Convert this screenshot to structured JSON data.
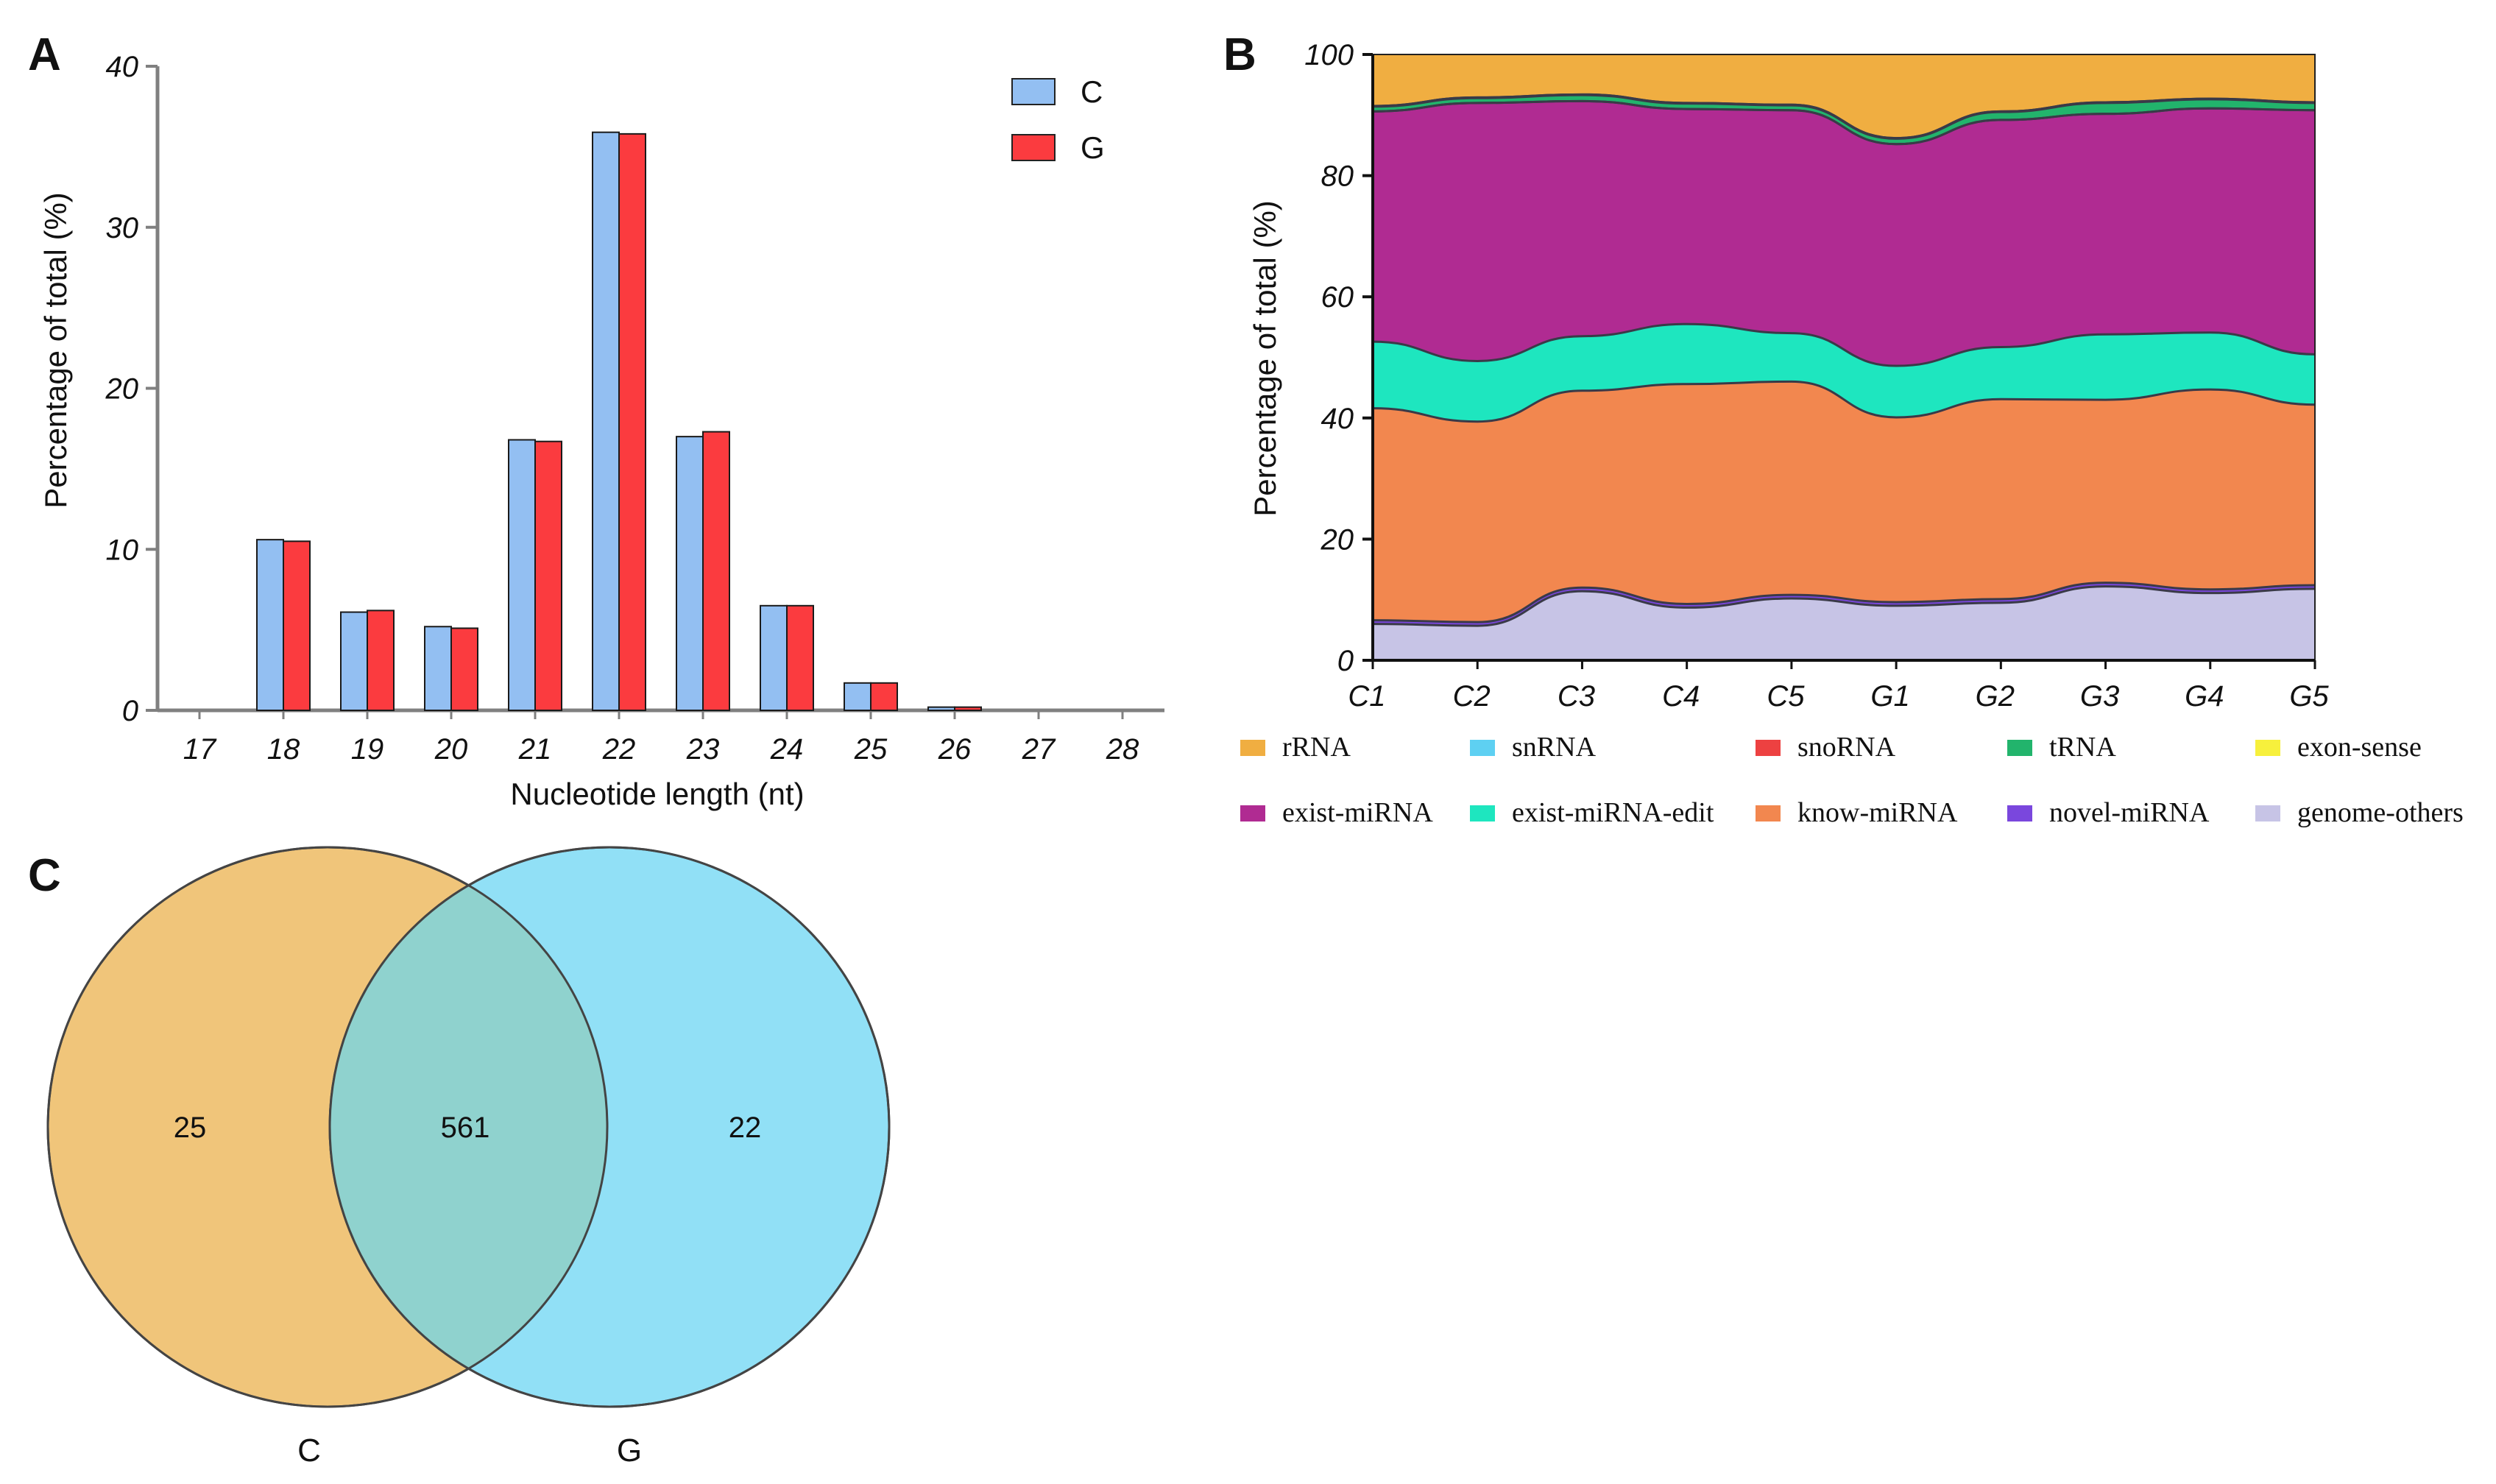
{
  "panel_labels": {
    "a": "A",
    "b": "B",
    "c": "C"
  },
  "colors": {
    "C": "#93bff2",
    "G": "#fb3b3f",
    "axis": "#808080",
    "rRNA": "#f0ae41",
    "snRNA": "#5ed0f2",
    "snoRNA": "#ed4141",
    "tRNA": "#22b46c",
    "exon_sense": "#f7f03c",
    "exist_miRNA": "#b02b92",
    "exist_miRNA_edit": "#1ee6bf",
    "know_miRNA": "#f2874f",
    "novel_miRNA": "#7a47dd",
    "genome_others": "#c7c4e6",
    "venn_C": "#f0c57a",
    "venn_G": "#91e0f6",
    "venn_overlap": "#8fd2ce"
  },
  "chart_data": [
    {
      "type": "bar",
      "panel": "A",
      "categories": [
        "17",
        "18",
        "19",
        "20",
        "21",
        "22",
        "23",
        "24",
        "25",
        "26",
        "27",
        "28"
      ],
      "series": [
        {
          "name": "C",
          "values": [
            0,
            10.6,
            6.1,
            5.2,
            16.8,
            35.9,
            17.0,
            6.5,
            1.7,
            0.2,
            0,
            0
          ]
        },
        {
          "name": "G",
          "values": [
            0,
            10.5,
            6.2,
            5.1,
            16.7,
            35.8,
            17.3,
            6.5,
            1.7,
            0.2,
            0,
            0
          ]
        }
      ],
      "xlabel": "Nucleotide length (nt)",
      "ylabel": "Percentage of total (%)",
      "ylim": [
        0,
        40
      ],
      "yticks": [
        "0",
        "10",
        "20",
        "30",
        "40"
      ],
      "legend": [
        "C",
        "G"
      ],
      "legend_position": "top-right"
    },
    {
      "type": "area",
      "stacked": true,
      "panel": "B",
      "categories": [
        "C1",
        "C2",
        "C3",
        "C4",
        "C5",
        "G1",
        "G2",
        "G3",
        "G4",
        "G5"
      ],
      "series": [
        {
          "name": "genome-others",
          "key": "genome_others",
          "values": [
            6,
            5.7,
            11.4,
            8.7,
            10.2,
            9.0,
            9.5,
            12.2,
            11.1,
            11.8
          ]
        },
        {
          "name": "novel-miRNA",
          "key": "novel_miRNA",
          "values": [
            0.6,
            0.6,
            0.6,
            0.6,
            0.6,
            0.6,
            0.6,
            0.6,
            0.6,
            0.6
          ]
        },
        {
          "name": "know-miRNA",
          "key": "know_miRNA",
          "values": [
            35.0,
            33.1,
            32.5,
            36.3,
            35.2,
            30.5,
            33.0,
            30.2,
            33.0,
            29.8
          ]
        },
        {
          "name": "exist-miRNA-edit",
          "key": "exist_miRNA_edit",
          "values": [
            11.0,
            10.0,
            9.0,
            9.9,
            8.0,
            8.5,
            8.6,
            10.8,
            9.4,
            8.3
          ]
        },
        {
          "name": "exist-miRNA",
          "key": "exist_miRNA",
          "values": [
            38.0,
            42.6,
            38.8,
            35.5,
            36.8,
            36.6,
            37.5,
            36.4,
            37.0,
            40.3
          ]
        },
        {
          "name": "exon-sense",
          "key": "exon_sense",
          "values": [
            0,
            0,
            0,
            0,
            0,
            0,
            0,
            0,
            0,
            0
          ]
        },
        {
          "name": "tRNA",
          "key": "tRNA",
          "values": [
            0.8,
            0.8,
            1.0,
            0.9,
            0.8,
            0.9,
            1.3,
            1.8,
            1.5,
            1.2
          ]
        },
        {
          "name": "snoRNA",
          "key": "snoRNA",
          "values": [
            0.1,
            0.1,
            0.1,
            0.1,
            0.1,
            0.1,
            0.1,
            0.1,
            0.1,
            0.1
          ]
        },
        {
          "name": "snRNA",
          "key": "snRNA",
          "values": [
            0,
            0,
            0,
            0,
            0,
            0,
            0,
            0,
            0,
            0
          ]
        },
        {
          "name": "rRNA",
          "key": "rRNA",
          "values": [
            8.5,
            7.1,
            6.6,
            8.0,
            8.3,
            13.8,
            9.4,
            7.9,
            7.3,
            7.9
          ]
        }
      ],
      "legend": [
        "rRNA",
        "snRNA",
        "snoRNA",
        "tRNA",
        "exon-sense",
        "exist-miRNA",
        "exist-miRNA-edit",
        "know-miRNA",
        "novel-miRNA",
        "genome-others"
      ],
      "legend_keys": [
        "rRNA",
        "snRNA",
        "snoRNA",
        "tRNA",
        "exon_sense",
        "exist_miRNA",
        "exist_miRNA_edit",
        "know_miRNA",
        "novel_miRNA",
        "genome_others"
      ],
      "legend_position": "bottom",
      "ylabel": "Percentage of total (%)",
      "ylim": [
        0,
        100
      ],
      "yticks": [
        "0",
        "20",
        "40",
        "60",
        "80",
        "100"
      ]
    },
    {
      "type": "venn",
      "panel": "C",
      "sets": [
        "C",
        "G"
      ],
      "only_C": "25",
      "overlap": "561",
      "only_G": "22"
    }
  ]
}
